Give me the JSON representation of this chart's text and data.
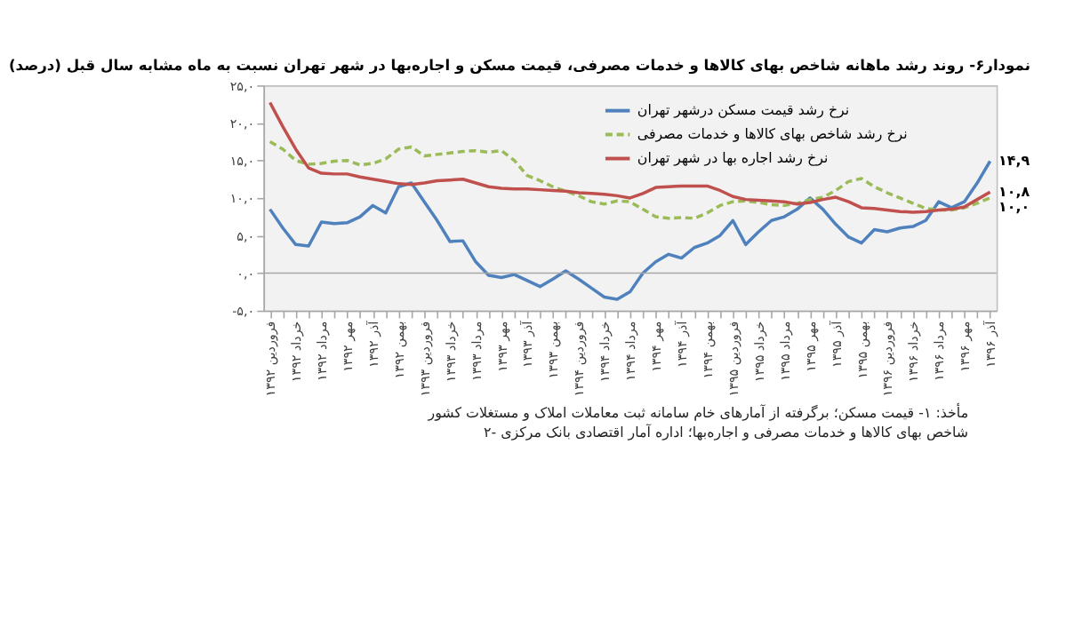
{
  "chart_data": {
    "type": "line",
    "title": "نمودار۶- روند رشد ماهانه شاخص بهای کالاها و خدمات مصرفی، قیمت مسکن و اجاره‌بها در شهر تهران نسبت به ماه مشابه سال قبل (درصد)",
    "categories": [
      "فروردین ۱۳۹۲",
      null,
      "خرداد ۱۳۹۲",
      null,
      "مرداد ۱۳۹۲",
      null,
      "مهر ۱۳۹۲",
      null,
      "آذر ۱۳۹۲",
      null,
      "بهمن ۱۳۹۲",
      null,
      "فروردین ۱۳۹۳",
      null,
      "خرداد ۱۳۹۳",
      null,
      "مرداد ۱۳۹۳",
      null,
      "مهر ۱۳۹۳",
      null,
      "آذر ۱۳۹۳",
      null,
      "بهمن ۱۳۹۳",
      null,
      "فروردین ۱۳۹۴",
      null,
      "خرداد ۱۳۹۴",
      null,
      "مرداد ۱۳۹۴",
      null,
      "مهر ۱۳۹۴",
      null,
      "آذر ۱۳۹۴",
      null,
      "بهمن ۱۳۹۴",
      null,
      "فروردین ۱۳۹۵",
      null,
      "خرداد ۱۳۹۵",
      null,
      "مرداد ۱۳۹۵",
      null,
      "مهر ۱۳۹۵",
      null,
      "آذر ۱۳۹۵",
      null,
      "بهمن ۱۳۹۵",
      null,
      "فروردین ۱۳۹۶",
      null,
      "خرداد ۱۳۹۶",
      null,
      "مرداد ۱۳۹۶",
      null,
      "مهر ۱۳۹۶",
      null,
      "آذر ۱۳۹۶"
    ],
    "series": [
      {
        "name": "نرخ رشد قیمت مسکن درشهر تهران",
        "color": "#4f81bd",
        "line_style": "solid",
        "values": [
          8.5,
          6,
          3.8,
          3.6,
          6.8,
          6.6,
          6.7,
          7.5,
          9,
          8,
          11.5,
          12,
          9.5,
          7,
          4.2,
          4.3,
          1.5,
          -0.3,
          -0.6,
          -0.2,
          -1,
          -1.8,
          -0.8,
          0.3,
          -0.8,
          -2,
          -3.2,
          -3.5,
          -2.5,
          0,
          1.5,
          2.5,
          2,
          3.4,
          4,
          5,
          7,
          3.8,
          5.5,
          7,
          7.5,
          8.5,
          10,
          8.5,
          6.5,
          4.8,
          4,
          5.8,
          5.5,
          6,
          6.2,
          7,
          9.5,
          8.7,
          9.5,
          12,
          14.9
        ],
        "value_labels": [
          null,
          null,
          null,
          null,
          null,
          null,
          null,
          null,
          null,
          null,
          null,
          null,
          null,
          null,
          null,
          null,
          null,
          null,
          null,
          null,
          null,
          null,
          null,
          null,
          null,
          null,
          null,
          null,
          null,
          null,
          null,
          null,
          null,
          null,
          null,
          null,
          null,
          null,
          null,
          null,
          null,
          null,
          null,
          null,
          null,
          null,
          null,
          null,
          null,
          null,
          null,
          null,
          null,
          null,
          null,
          null,
          "۱۴,۹"
        ]
      },
      {
        "name": "نرخ رشد شاخص بهای کالاها و خدمات مصرفی",
        "color": "#9bbb59",
        "line_style": "dashed",
        "values": [
          17.5,
          16.5,
          15,
          14.5,
          14.6,
          14.9,
          15,
          14.4,
          14.6,
          15.2,
          16.5,
          16.8,
          15.6,
          15.8,
          16,
          16.2,
          16.3,
          16.1,
          16.3,
          15,
          13,
          12.3,
          11.5,
          10.9,
          10.3,
          9.5,
          9.2,
          9.6,
          9.5,
          8.5,
          7.5,
          7.3,
          7.4,
          7.3,
          8,
          9,
          9.5,
          9.6,
          9.4,
          9.1,
          9,
          9.3,
          9.8,
          10.1,
          11,
          12.2,
          12.6,
          11.5,
          10.7,
          10,
          9.3,
          8.6,
          8.4,
          8.4,
          8.7,
          9.3,
          10
        ],
        "value_labels": [
          null,
          null,
          null,
          null,
          null,
          null,
          null,
          null,
          null,
          null,
          null,
          null,
          null,
          null,
          null,
          null,
          null,
          null,
          null,
          null,
          null,
          null,
          null,
          null,
          null,
          null,
          null,
          null,
          null,
          null,
          null,
          null,
          null,
          null,
          null,
          null,
          null,
          null,
          null,
          null,
          null,
          null,
          null,
          null,
          null,
          null,
          null,
          null,
          null,
          null,
          null,
          null,
          null,
          null,
          null,
          null,
          "۱۰,۰"
        ]
      },
      {
        "name": "نرخ رشد اجاره بها در شهر تهران",
        "color": "#c0504d",
        "line_style": "solid",
        "values": [
          22.7,
          19.5,
          16.5,
          14,
          13.3,
          13.2,
          13.2,
          12.8,
          12.5,
          12.2,
          11.9,
          11.8,
          12,
          12.3,
          12.4,
          12.5,
          12,
          11.5,
          11.3,
          11.2,
          11.2,
          11.1,
          11,
          10.9,
          10.7,
          10.6,
          10.5,
          10.3,
          10,
          10.6,
          11.4,
          11.5,
          11.6,
          11.6,
          11.6,
          11,
          10.2,
          9.8,
          9.7,
          9.6,
          9.5,
          9.2,
          9.4,
          9.8,
          10.1,
          9.5,
          8.7,
          8.6,
          8.4,
          8.2,
          8.1,
          8.2,
          8.4,
          8.5,
          8.8,
          9.8,
          10.8
        ],
        "value_labels": [
          null,
          null,
          null,
          null,
          null,
          null,
          null,
          null,
          null,
          null,
          null,
          null,
          null,
          null,
          null,
          null,
          null,
          null,
          null,
          null,
          null,
          null,
          null,
          null,
          null,
          null,
          null,
          null,
          null,
          null,
          null,
          null,
          null,
          null,
          null,
          null,
          null,
          null,
          null,
          null,
          null,
          null,
          null,
          null,
          null,
          null,
          null,
          null,
          null,
          null,
          null,
          null,
          null,
          null,
          null,
          null,
          "۱۰,۸"
        ]
      }
    ],
    "ylim": [
      -5,
      25
    ],
    "yticks": [
      {
        "value": -5,
        "label": "-۵,۰"
      },
      {
        "value": 0,
        "label": "۰,۰"
      },
      {
        "value": 5,
        "label": "۵,۰"
      },
      {
        "value": 10,
        "label": "۱۰,۰"
      },
      {
        "value": 15,
        "label": "۱۵,۰"
      },
      {
        "value": 20,
        "label": "۲۰,۰"
      },
      {
        "value": 25,
        "label": "۲۵,۰"
      }
    ],
    "ref_lines": [
      {
        "axis": "y",
        "value": 0,
        "color": "#a6a6a6"
      }
    ],
    "legend": "top",
    "marker": "none",
    "annotations": [
      "مأخذ: ۱- قیمت مسکن؛ برگرفته از آمارهای خام سامانه ثبت معاملات املاک و مستغلات کشور",
      "۲- شاخص بهای کالاها و خدمات مصرفی و اجاره‌بها؛ اداره آمار اقتصادی بانک مرکزی"
    ]
  }
}
